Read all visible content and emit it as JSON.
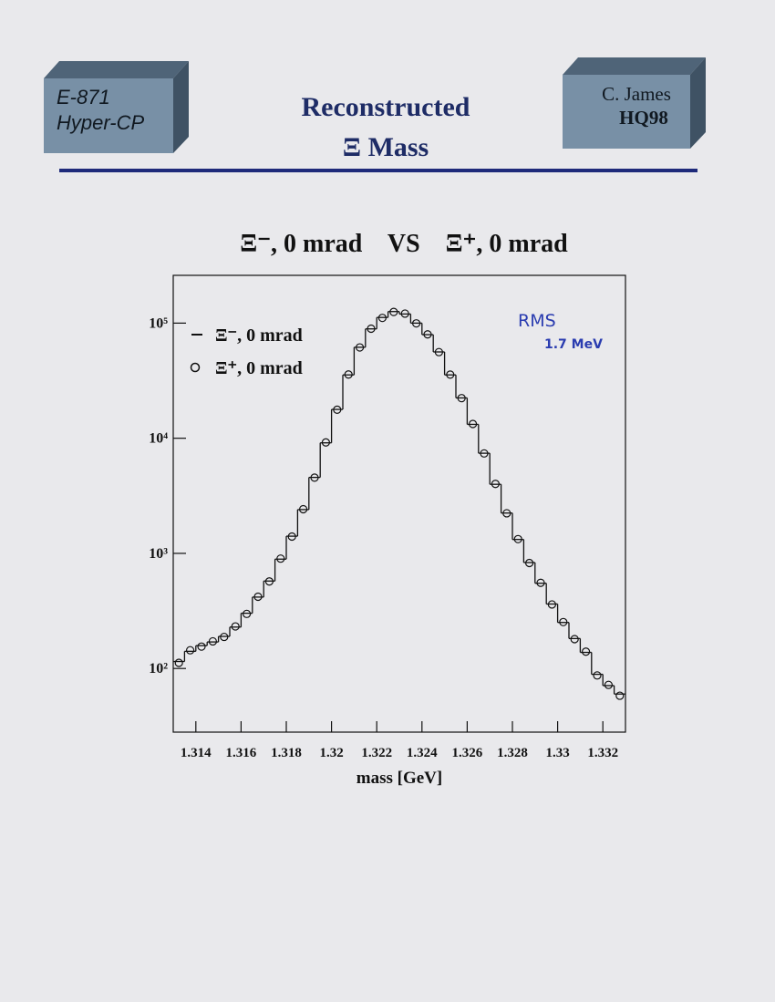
{
  "header": {
    "left_box": [
      "E-871",
      "Hyper-CP"
    ],
    "title": [
      "Reconstructed",
      "Ξ Mass"
    ],
    "right_box": [
      "C. James",
      "HQ98"
    ]
  },
  "chart_data": {
    "type": "histogram",
    "title": "Ξ⁻, 0 mrad    VS    Ξ⁺, 0 mrad",
    "xlabel": "mass [GeV]",
    "annotation": [
      "RMS",
      "1.7 MeV"
    ],
    "bins": [
      1.313,
      1.3135,
      1.314,
      1.3145,
      1.315,
      1.3155,
      1.316,
      1.3165,
      1.317,
      1.3175,
      1.318,
      1.3185,
      1.319,
      1.3195,
      1.32,
      1.3205,
      1.321,
      1.3215,
      1.322,
      1.3225,
      1.323,
      1.3235,
      1.324,
      1.3245,
      1.325,
      1.3255,
      1.326,
      1.3265,
      1.327,
      1.3275,
      1.328,
      1.3285,
      1.329,
      1.3295,
      1.33,
      1.3305,
      1.331,
      1.3315,
      1.332,
      1.3325,
      1.333
    ],
    "series": [
      {
        "name": "Ξ⁻, 0 mrad",
        "color": "#111111",
        "style": "step",
        "values": [
          115,
          141,
          158,
          170,
          190,
          229,
          302,
          417,
          575,
          891,
          1410,
          2400,
          4570,
          9120,
          17800,
          35500,
          61700,
          89100,
          112000,
          126000,
          120000,
          100000,
          79400,
          56200,
          35500,
          22400,
          13200,
          7410,
          3980,
          2240,
          1320,
          832,
          550,
          363,
          251,
          182,
          138,
          89,
          71,
          60
        ]
      },
      {
        "name": "Ξ⁺, 0 mrad",
        "color": "#111111",
        "style": "circle",
        "values": [
          112,
          144,
          155,
          172,
          188,
          232,
          298,
          420,
          570,
          900,
          1400,
          2420,
          4550,
          9200,
          17700,
          35800,
          61500,
          89500,
          111000,
          125000,
          121000,
          99500,
          79800,
          56000,
          35700,
          22300,
          13300,
          7380,
          4010,
          2230,
          1330,
          825,
          555,
          360,
          253,
          180,
          140,
          87,
          72,
          58
        ]
      }
    ],
    "xlim": [
      1.313,
      1.333
    ],
    "xticks": [
      1.314,
      1.316,
      1.318,
      1.32,
      1.322,
      1.324,
      1.326,
      1.328,
      1.33,
      1.332
    ],
    "ylim": [
      28,
      260000
    ],
    "yticks": [
      {
        "value": 100,
        "label": "10²"
      },
      {
        "value": 1000,
        "label": "10³"
      },
      {
        "value": 10000,
        "label": "10⁴"
      },
      {
        "value": 100000,
        "label": "10⁵"
      }
    ],
    "ylog": true,
    "grid": false,
    "legend": "upper left"
  }
}
